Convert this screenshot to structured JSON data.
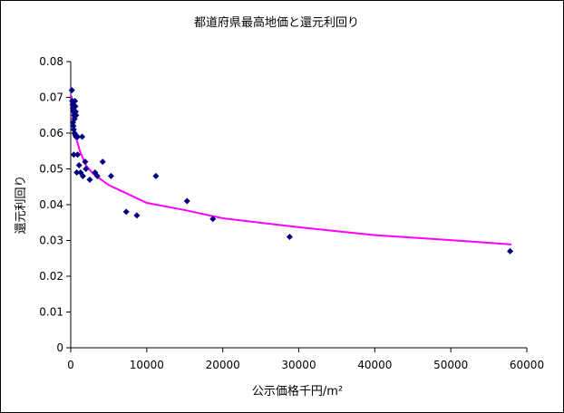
{
  "chart_data": {
    "type": "scatter",
    "title": "都道府県最高地価と還元利回り",
    "xlabel": "公示価格千円/m²",
    "ylabel": "還元利回り",
    "xlim": [
      0,
      60000
    ],
    "ylim": [
      0,
      0.08
    ],
    "x_ticks": [
      "0",
      "10000",
      "20000",
      "30000",
      "40000",
      "50000",
      "60000"
    ],
    "y_ticks": [
      "0",
      "0.01",
      "0.02",
      "0.03",
      "0.04",
      "0.05",
      "0.06",
      "0.07",
      "0.08"
    ],
    "grid": false,
    "legend": "none",
    "marker_color": "#000080",
    "trendline_color": "#ff00ff",
    "points": [
      [
        150,
        0.072
      ],
      [
        200,
        0.069
      ],
      [
        250,
        0.068
      ],
      [
        300,
        0.067
      ],
      [
        350,
        0.0665
      ],
      [
        400,
        0.066
      ],
      [
        450,
        0.065
      ],
      [
        500,
        0.064
      ],
      [
        550,
        0.069
      ],
      [
        600,
        0.0675
      ],
      [
        650,
        0.066
      ],
      [
        700,
        0.065
      ],
      [
        300,
        0.063
      ],
      [
        350,
        0.062
      ],
      [
        400,
        0.061
      ],
      [
        500,
        0.06
      ],
      [
        600,
        0.0595
      ],
      [
        700,
        0.059
      ],
      [
        900,
        0.059
      ],
      [
        1500,
        0.059
      ],
      [
        400,
        0.054
      ],
      [
        900,
        0.054
      ],
      [
        1100,
        0.051
      ],
      [
        800,
        0.049
      ],
      [
        1300,
        0.049
      ],
      [
        1600,
        0.048
      ],
      [
        1900,
        0.052
      ],
      [
        2000,
        0.05
      ],
      [
        2500,
        0.047
      ],
      [
        3200,
        0.049
      ],
      [
        3500,
        0.048
      ],
      [
        4200,
        0.052
      ],
      [
        5300,
        0.048
      ],
      [
        7300,
        0.038
      ],
      [
        8700,
        0.037
      ],
      [
        11200,
        0.048
      ],
      [
        15300,
        0.041
      ],
      [
        18700,
        0.036
      ],
      [
        28800,
        0.031
      ],
      [
        57800,
        0.027
      ]
    ],
    "trendline": {
      "type": "power",
      "points": [
        [
          100,
          0.0705
        ],
        [
          200,
          0.067
        ],
        [
          300,
          0.0635
        ],
        [
          500,
          0.0605
        ],
        [
          800,
          0.058
        ],
        [
          1200,
          0.055
        ],
        [
          2000,
          0.051
        ],
        [
          3000,
          0.0485
        ],
        [
          5000,
          0.0455
        ],
        [
          7000,
          0.0435
        ],
        [
          10000,
          0.0405
        ],
        [
          15000,
          0.0385
        ],
        [
          20000,
          0.0362
        ],
        [
          30000,
          0.0337
        ],
        [
          40000,
          0.0315
        ],
        [
          50000,
          0.0301
        ],
        [
          58000,
          0.0289
        ]
      ]
    }
  }
}
